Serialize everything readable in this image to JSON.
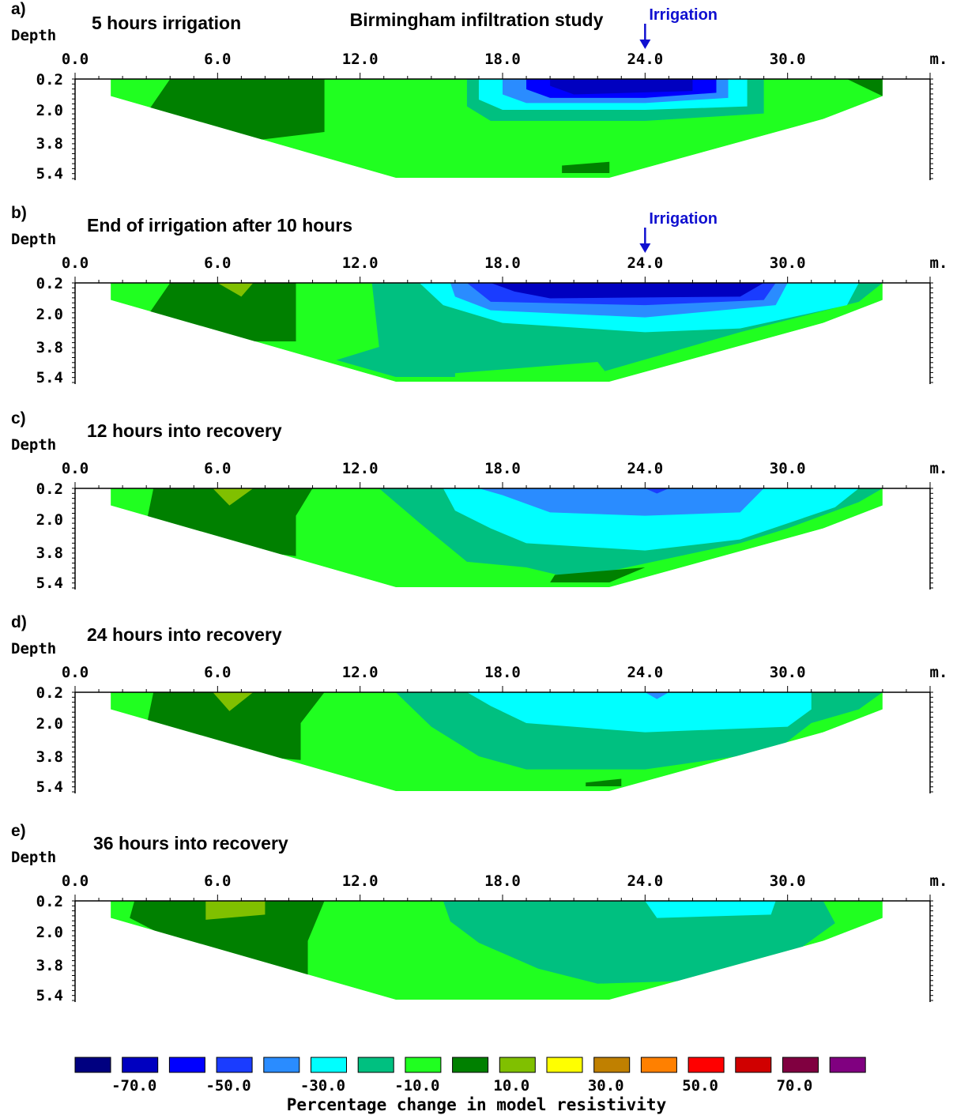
{
  "chart_data": {
    "type": "heatmap",
    "title": "Birmingham infiltration study",
    "x_unit_label": "m.",
    "y_axis_label": "Depth",
    "x_ticks": [
      "0.0",
      "6.0",
      "12.0",
      "18.0",
      "24.0",
      "30.0"
    ],
    "x_range": [
      0,
      36
    ],
    "y_ticks": [
      "0.2",
      "2.0",
      "3.8",
      "5.4"
    ],
    "y_range": [
      0.2,
      5.4
    ],
    "colorbar": {
      "title": "Percentage change in model resistivity",
      "tick_labels": [
        "-70.0",
        "-50.0",
        "-30.0",
        "-10.0",
        "10.0",
        "30.0",
        "50.0",
        "70.0"
      ],
      "colors": [
        "#000080",
        "#0000c0",
        "#0000ff",
        "#1a3cff",
        "#2a8cff",
        "#00ffff",
        "#00c080",
        "#20ff20",
        "#008000",
        "#80c000",
        "#ffff00",
        "#c08000",
        "#ff8000",
        "#ff0000",
        "#d00000",
        "#800040",
        "#800080"
      ]
    },
    "panels": [
      {
        "label": "a)",
        "title": "5 hours irrigation",
        "irrigation_marker": "Irrigation",
        "irrigation_x": 24,
        "regions": [
          {
            "color": "#008000",
            "poly": [
              [
                4,
                0.2
              ],
              [
                10.5,
                0.2
              ],
              [
                10.5,
                3.2
              ],
              [
                6,
                3.9
              ],
              [
                3,
                2.2
              ]
            ]
          },
          {
            "color": "#00c080",
            "poly": [
              [
                16.5,
                0.2
              ],
              [
                29,
                0.2
              ],
              [
                29,
                2.2
              ],
              [
                24,
                2.6
              ],
              [
                17.5,
                2.6
              ],
              [
                16.5,
                1.8
              ]
            ]
          },
          {
            "color": "#00ffff",
            "poly": [
              [
                17,
                0.2
              ],
              [
                28.3,
                0.2
              ],
              [
                28.3,
                1.8
              ],
              [
                24,
                2.0
              ],
              [
                18,
                2.0
              ],
              [
                17,
                1.4
              ]
            ]
          },
          {
            "color": "#2a8cff",
            "poly": [
              [
                18,
                0.2
              ],
              [
                27.5,
                0.2
              ],
              [
                27.5,
                1.3
              ],
              [
                24,
                1.6
              ],
              [
                19,
                1.6
              ],
              [
                18,
                1.1
              ]
            ]
          },
          {
            "color": "#0000ff",
            "poly": [
              [
                19,
                0.2
              ],
              [
                27,
                0.2
              ],
              [
                27,
                1.0
              ],
              [
                24,
                1.3
              ],
              [
                20,
                1.3
              ],
              [
                19,
                0.8
              ]
            ]
          },
          {
            "color": "#0000c0",
            "poly": [
              [
                20,
                0.2
              ],
              [
                26,
                0.2
              ],
              [
                26,
                0.9
              ],
              [
                21,
                1.1
              ],
              [
                20,
                0.6
              ]
            ]
          },
          {
            "color": "#008000",
            "poly": [
              [
                20.5,
                5.0
              ],
              [
                22.5,
                4.8
              ],
              [
                22.5,
                5.4
              ],
              [
                20.5,
                5.4
              ]
            ]
          },
          {
            "color": "#008000",
            "poly": [
              [
                32.5,
                0.2
              ],
              [
                34,
                0.2
              ],
              [
                34,
                1.2
              ]
            ]
          }
        ]
      },
      {
        "label": "b)",
        "title": "End of irrigation after 10 hours",
        "irrigation_marker": "Irrigation",
        "irrigation_x": 24,
        "regions": [
          {
            "color": "#008000",
            "poly": [
              [
                4,
                0.2
              ],
              [
                9.3,
                0.2
              ],
              [
                9.3,
                3.5
              ],
              [
                7,
                3.5
              ],
              [
                3,
                2.2
              ]
            ]
          },
          {
            "color": "#80c000",
            "poly": [
              [
                6,
                0.2
              ],
              [
                7.5,
                0.2
              ],
              [
                7,
                1.0
              ]
            ]
          },
          {
            "color": "#00c080",
            "poly": [
              [
                12.5,
                0.2
              ],
              [
                34,
                0.2
              ],
              [
                33,
                1.3
              ],
              [
                28,
                3.0
              ],
              [
                22,
                5.2
              ],
              [
                20,
                5.0
              ],
              [
                17,
                5.4
              ],
              [
                13.5,
                5.4
              ],
              [
                11,
                4.5
              ],
              [
                12.8,
                3.8
              ]
            ]
          },
          {
            "color": "#20ff20",
            "poly": [
              [
                16,
                5.2
              ],
              [
                22,
                4.6
              ],
              [
                22.5,
                5.4
              ],
              [
                16,
                5.4
              ]
            ]
          },
          {
            "color": "#00ffff",
            "poly": [
              [
                14.5,
                0.2
              ],
              [
                33,
                0.2
              ],
              [
                32.5,
                1.5
              ],
              [
                28,
                2.8
              ],
              [
                24,
                3.0
              ],
              [
                18,
                2.5
              ],
              [
                15.5,
                1.5
              ]
            ]
          },
          {
            "color": "#2a8cff",
            "poly": [
              [
                15.8,
                0.2
              ],
              [
                30,
                0.2
              ],
              [
                29.5,
                1.5
              ],
              [
                24,
                2.2
              ],
              [
                17.5,
                1.8
              ],
              [
                16,
                1.0
              ]
            ]
          },
          {
            "color": "#1a3cff",
            "poly": [
              [
                16.5,
                0.2
              ],
              [
                29.5,
                0.2
              ],
              [
                29,
                1.2
              ],
              [
                24,
                1.5
              ],
              [
                17.5,
                1.3
              ]
            ]
          },
          {
            "color": "#0000c0",
            "poly": [
              [
                17.5,
                0.2
              ],
              [
                29,
                0.2
              ],
              [
                28,
                1.0
              ],
              [
                20,
                1.1
              ],
              [
                18.5,
                0.7
              ]
            ]
          }
        ]
      },
      {
        "label": "c)",
        "title": "12 hours into recovery",
        "regions": [
          {
            "color": "#008000",
            "poly": [
              [
                3.3,
                0.2
              ],
              [
                10,
                0.2
              ],
              [
                9.3,
                1.8
              ],
              [
                9.3,
                4.0
              ],
              [
                6.5,
                3.6
              ],
              [
                3,
                2.2
              ]
            ]
          },
          {
            "color": "#80c000",
            "poly": [
              [
                5.8,
                0.2
              ],
              [
                7.5,
                0.2
              ],
              [
                6.5,
                1.2
              ]
            ]
          },
          {
            "color": "#00c080",
            "poly": [
              [
                12.8,
                0.2
              ],
              [
                34,
                0.2
              ],
              [
                33,
                1.0
              ],
              [
                30,
                2.5
              ],
              [
                28,
                3.3
              ],
              [
                22.5,
                4.8
              ],
              [
                21,
                5.2
              ],
              [
                19,
                4.6
              ],
              [
                16.5,
                4.3
              ],
              [
                14.5,
                2.2
              ]
            ]
          },
          {
            "color": "#008000",
            "poly": [
              [
                20.2,
                5.0
              ],
              [
                24,
                4.6
              ],
              [
                22.5,
                5.4
              ],
              [
                20,
                5.4
              ]
            ]
          },
          {
            "color": "#00ffff",
            "poly": [
              [
                15.5,
                0.2
              ],
              [
                33,
                0.2
              ],
              [
                32,
                1.3
              ],
              [
                28,
                3.1
              ],
              [
                24,
                3.7
              ],
              [
                19,
                3.3
              ],
              [
                17.5,
                2.5
              ],
              [
                16,
                1.5
              ]
            ]
          },
          {
            "color": "#2a8cff",
            "poly": [
              [
                17,
                0.2
              ],
              [
                29,
                0.2
              ],
              [
                28,
                1.6
              ],
              [
                24,
                1.8
              ],
              [
                20,
                1.6
              ],
              [
                18,
                0.6
              ]
            ]
          },
          {
            "color": "#1a3cff",
            "poly": [
              [
                24,
                0.2
              ],
              [
                25,
                0.2
              ],
              [
                24.5,
                0.5
              ]
            ]
          }
        ]
      },
      {
        "label": "d)",
        "title": "24 hours into recovery",
        "regions": [
          {
            "color": "#008000",
            "poly": [
              [
                3.3,
                0.2
              ],
              [
                10.5,
                0.2
              ],
              [
                9.5,
                2.0
              ],
              [
                9.5,
                4.0
              ],
              [
                6.5,
                3.7
              ],
              [
                3,
                2.2
              ]
            ]
          },
          {
            "color": "#80c000",
            "poly": [
              [
                5.8,
                0.2
              ],
              [
                7.5,
                0.2
              ],
              [
                6.5,
                1.3
              ]
            ]
          },
          {
            "color": "#00c080",
            "poly": [
              [
                13.5,
                0.2
              ],
              [
                34,
                0.2
              ],
              [
                33,
                1.2
              ],
              [
                31,
                2.0
              ],
              [
                29.5,
                3.5
              ],
              [
                24,
                4.5
              ],
              [
                19,
                4.5
              ],
              [
                17,
                3.8
              ],
              [
                15,
                2.2
              ]
            ]
          },
          {
            "color": "#00ffff",
            "poly": [
              [
                16.5,
                0.2
              ],
              [
                31,
                0.2
              ],
              [
                31,
                1.2
              ],
              [
                30,
                2.2
              ],
              [
                24,
                2.5
              ],
              [
                19,
                2.0
              ],
              [
                17.5,
                1.0
              ]
            ]
          },
          {
            "color": "#2a8cff",
            "poly": [
              [
                24,
                0.2
              ],
              [
                25,
                0.2
              ],
              [
                24.5,
                0.6
              ]
            ]
          },
          {
            "color": "#008000",
            "poly": [
              [
                21.5,
                5.2
              ],
              [
                23,
                5.0
              ],
              [
                23,
                5.4
              ],
              [
                21.5,
                5.4
              ]
            ]
          }
        ]
      },
      {
        "label": "e)",
        "title": "36 hours into recovery",
        "regions": [
          {
            "color": "#008000",
            "poly": [
              [
                2.5,
                0.2
              ],
              [
                10.5,
                0.2
              ],
              [
                9.8,
                2.5
              ],
              [
                9.8,
                4.4
              ],
              [
                6,
                3.7
              ],
              [
                2.3,
                1.2
              ]
            ]
          },
          {
            "color": "#80c000",
            "poly": [
              [
                5.5,
                0.2
              ],
              [
                8,
                0.2
              ],
              [
                8,
                1.0
              ],
              [
                5.5,
                1.3
              ]
            ]
          },
          {
            "color": "#00c080",
            "poly": [
              [
                15.5,
                0.2
              ],
              [
                31.5,
                0.2
              ],
              [
                32,
                1.5
              ],
              [
                30,
                3.4
              ],
              [
                27,
                4.6
              ],
              [
                22,
                4.8
              ],
              [
                19.5,
                4.0
              ],
              [
                17,
                2.6
              ],
              [
                15.8,
                1.4
              ]
            ]
          },
          {
            "color": "#00ffff",
            "poly": [
              [
                24,
                0.2
              ],
              [
                29.5,
                0.2
              ],
              [
                29.3,
                1.0
              ],
              [
                24.5,
                1.2
              ]
            ]
          }
        ]
      }
    ]
  }
}
